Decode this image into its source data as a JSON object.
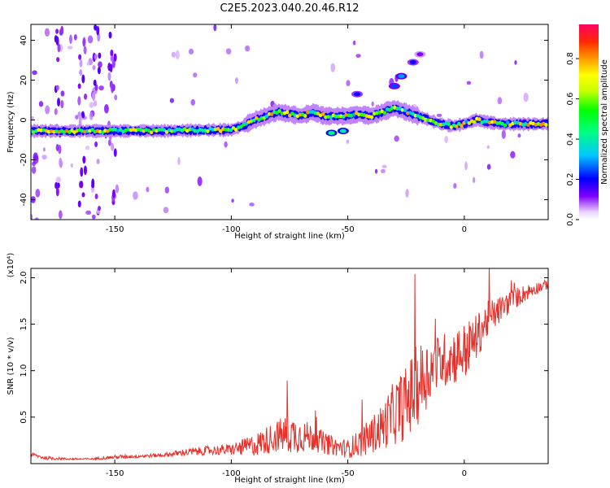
{
  "title": "C2E5.2023.040.20.46.R12",
  "chart_data": [
    {
      "type": "heatmap",
      "xlabel": "Height of straight line (km)",
      "ylabel": "Frequency (Hz)",
      "xlim": [
        -186,
        36
      ],
      "ylim": [
        -50,
        48
      ],
      "xticks": [
        -150,
        -100,
        -50,
        0
      ],
      "yticks": [
        -40,
        -20,
        0,
        20,
        40
      ],
      "colorbar": {
        "label": "Normalized spectral amplitude",
        "range": [
          0,
          0.97
        ],
        "ticks": [
          0.0,
          0.2,
          0.4,
          0.6,
          0.8
        ],
        "tick_labels": [
          "0.0",
          "0.2",
          "0.4",
          "0.6",
          "0.8"
        ]
      },
      "ridge": [
        {
          "x": -186,
          "y": -5.5
        },
        {
          "x": -170,
          "y": -5.5
        },
        {
          "x": -150,
          "y": -5.5
        },
        {
          "x": -130,
          "y": -5.5
        },
        {
          "x": -110,
          "y": -5
        },
        {
          "x": -100,
          "y": -5
        },
        {
          "x": -95,
          "y": -3
        },
        {
          "x": -90,
          "y": 0
        },
        {
          "x": -85,
          "y": 2
        },
        {
          "x": -80,
          "y": 4
        },
        {
          "x": -75,
          "y": 3
        },
        {
          "x": -70,
          "y": 2
        },
        {
          "x": -65,
          "y": 4
        },
        {
          "x": -60,
          "y": 2
        },
        {
          "x": -55,
          "y": 2
        },
        {
          "x": -50,
          "y": 2
        },
        {
          "x": -45,
          "y": 3
        },
        {
          "x": -40,
          "y": 2
        },
        {
          "x": -35,
          "y": 4
        },
        {
          "x": -30,
          "y": 6
        },
        {
          "x": -25,
          "y": 4
        },
        {
          "x": -20,
          "y": 2
        },
        {
          "x": -15,
          "y": 0
        },
        {
          "x": -10,
          "y": -2
        },
        {
          "x": -5,
          "y": -3
        },
        {
          "x": 0,
          "y": -2
        },
        {
          "x": 5,
          "y": 0
        },
        {
          "x": 10,
          "y": -1
        },
        {
          "x": 15,
          "y": -2
        },
        {
          "x": 20,
          "y": -2
        },
        {
          "x": 25,
          "y": -2
        },
        {
          "x": 30,
          "y": -2
        },
        {
          "x": 36,
          "y": -2
        }
      ],
      "features": [
        {
          "x": -57,
          "y": -6.5,
          "amp": 0.45
        },
        {
          "x": -52,
          "y": -5.5,
          "amp": 0.4
        },
        {
          "x": -30,
          "y": 17,
          "amp": 0.25
        },
        {
          "x": -27,
          "y": 22,
          "amp": 0.3
        },
        {
          "x": -22,
          "y": 29,
          "amp": 0.2
        },
        {
          "x": -19,
          "y": 33,
          "amp": 0.12
        },
        {
          "x": -46,
          "y": 13,
          "amp": 0.2
        }
      ]
    },
    {
      "type": "line",
      "xlabel": "Height of straight line (km)",
      "ylabel": "SNR (10 * v/v)",
      "y_multiplier": "(x10⁴)",
      "xlim": [
        -186,
        36
      ],
      "ylim": [
        0,
        2.1
      ],
      "xticks": [
        -150,
        -100,
        -50,
        0
      ],
      "yticks": [
        0.5,
        1.0,
        1.5,
        2.0
      ],
      "ytick_labels": [
        "0.5",
        "1.0",
        "1.5",
        "2.0"
      ],
      "series": [
        {
          "color": "#e8302a",
          "x": [
            -186,
            -180,
            -170,
            -160,
            -150,
            -140,
            -130,
            -120,
            -110,
            -100,
            -90,
            -80,
            -75,
            -70,
            -65,
            -60,
            -55,
            -50,
            -45,
            -40,
            -35,
            -30,
            -25,
            -20,
            -15,
            -10,
            -5,
            0,
            5,
            10,
            15,
            20,
            25,
            30,
            36
          ],
          "y": [
            0.1,
            0.06,
            0.05,
            0.05,
            0.07,
            0.08,
            0.09,
            0.12,
            0.14,
            0.15,
            0.2,
            0.3,
            0.32,
            0.3,
            0.28,
            0.22,
            0.18,
            0.16,
            0.22,
            0.3,
            0.4,
            0.55,
            0.65,
            0.85,
            1.0,
            1.1,
            1.15,
            1.2,
            1.35,
            1.55,
            1.65,
            1.75,
            1.82,
            1.88,
            1.93
          ],
          "spread": [
            0.02,
            0.02,
            0.01,
            0.01,
            0.02,
            0.02,
            0.02,
            0.04,
            0.05,
            0.06,
            0.12,
            0.18,
            0.22,
            0.18,
            0.15,
            0.12,
            0.1,
            0.1,
            0.15,
            0.2,
            0.25,
            0.35,
            0.4,
            0.45,
            0.35,
            0.3,
            0.3,
            0.32,
            0.25,
            0.2,
            0.15,
            0.12,
            0.1,
            0.07,
            0.05
          ]
        }
      ]
    }
  ]
}
